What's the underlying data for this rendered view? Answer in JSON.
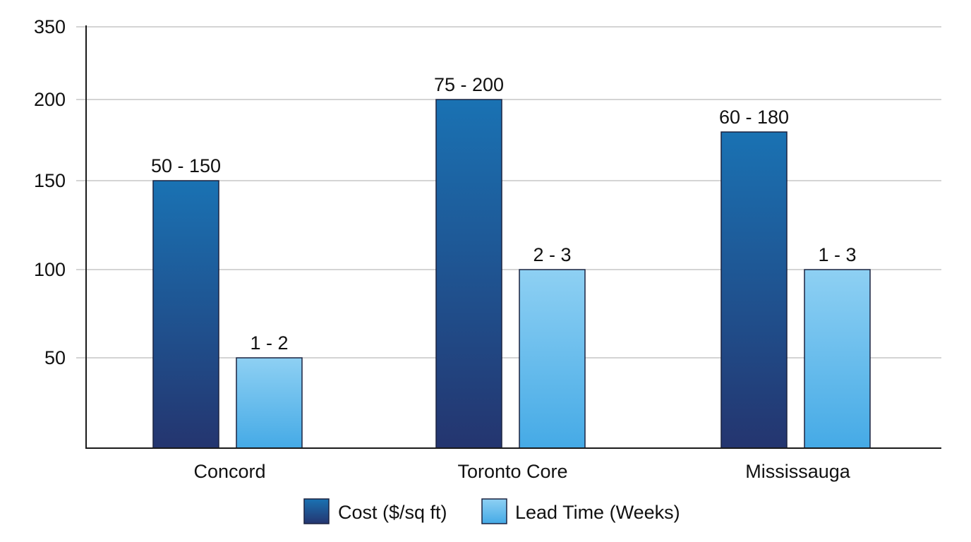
{
  "chart_data": {
    "type": "bar",
    "categories": [
      "Concord",
      "Toronto Core",
      "Mississauga"
    ],
    "y_ticks": [
      "350",
      "200",
      "150",
      "100",
      "50"
    ],
    "series": [
      {
        "name": "Cost ($/sq ft)",
        "values": [
          150,
          200,
          180
        ],
        "labels": [
          "50 - 150",
          "75 - 200",
          "60 - 180"
        ],
        "color_top": "#1a72b3",
        "color_bottom": "#24356f"
      },
      {
        "name": "Lead Time (Weeks)",
        "values": [
          50,
          100,
          100
        ],
        "labels": [
          "1 - 2",
          "2 - 3",
          "1 - 3"
        ],
        "color_top": "#8ed0f3",
        "color_bottom": "#45aae6"
      }
    ],
    "legend_position": "bottom-center",
    "grid": true
  }
}
